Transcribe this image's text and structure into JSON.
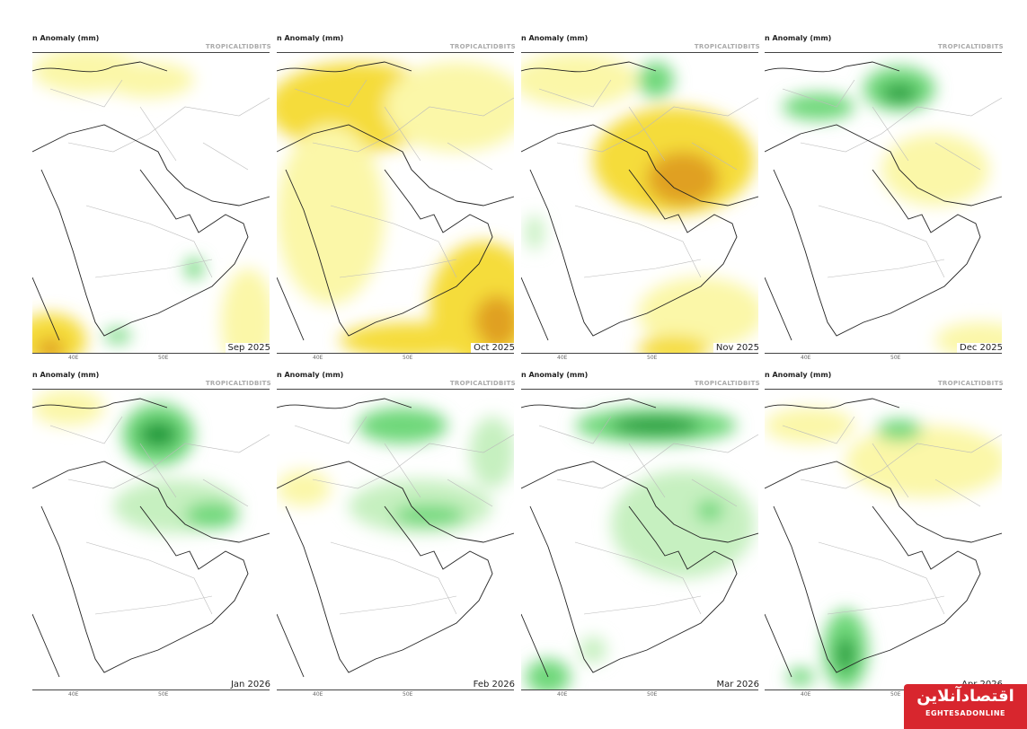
{
  "header": {
    "title": "n Anomaly (mm)",
    "brand": "TROPICALTIDBITS"
  },
  "ticks": [
    "40E",
    "50E"
  ],
  "colors": {
    "dry_light": "#fbf7a8",
    "dry": "#f5dc3a",
    "dry_strong": "#e0a020",
    "wet_light": "#c6f0c0",
    "wet": "#6fd87a",
    "wet_strong": "#1a9a3a"
  },
  "panels": [
    {
      "month": "Sep 2025"
    },
    {
      "month": "Oct 2025"
    },
    {
      "month": "Nov 2025"
    },
    {
      "month": "Dec 2025"
    },
    {
      "month": "Jan 2026"
    },
    {
      "month": "Feb 2026"
    },
    {
      "month": "Mar 2026"
    },
    {
      "month": "Apr 2026"
    }
  ],
  "logo": {
    "name_fa": "اقتصادآنلاین",
    "name_en": "EGHTESADONLINE"
  }
}
